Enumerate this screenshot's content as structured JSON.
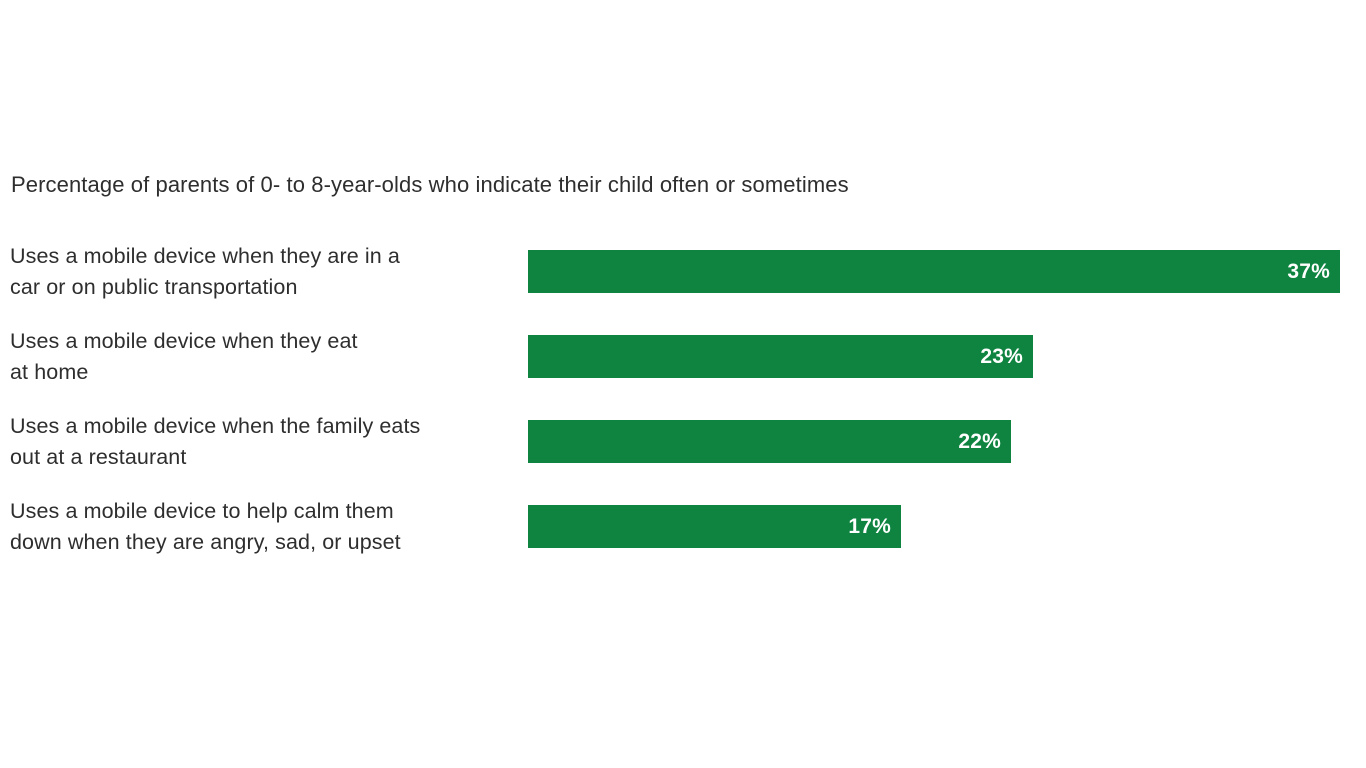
{
  "page": {
    "background_color": "#ffffff"
  },
  "chart": {
    "title": "Percentage of parents of 0- to 8-year-olds who indicate their child often or sometimes",
    "bar_color": "#0e8440",
    "label_text_color": "#2e2e2e",
    "value_text_color": "#ffffff",
    "scale_max": 37,
    "rows": [
      {
        "lines": [
          "Uses a mobile device when they are in a",
          "car or on public transportation"
        ],
        "value": 37,
        "value_label": "37%"
      },
      {
        "lines": [
          "Uses a mobile device when they eat",
          "at home"
        ],
        "value": 23,
        "value_label": "23%"
      },
      {
        "lines": [
          "Uses a mobile device when the family eats",
          "out at a restaurant"
        ],
        "value": 22,
        "value_label": "22%"
      },
      {
        "lines": [
          "Uses a mobile device to help calm them",
          "down when they are angry, sad, or upset"
        ],
        "value": 17,
        "value_label": "17%"
      }
    ]
  },
  "chart_data": {
    "type": "bar",
    "orientation": "horizontal",
    "title": "Percentage of parents of 0- to 8-year-olds who indicate their child often or sometimes",
    "categories": [
      "Uses a mobile device when they are in a car or on public transportation",
      "Uses a mobile device when they eat at home",
      "Uses a mobile device when the family eats out at a restaurant",
      "Uses a mobile device to help calm them down when they are angry, sad, or upset"
    ],
    "values": [
      37,
      23,
      22,
      17
    ],
    "data_labels": [
      "37%",
      "23%",
      "22%",
      "17%"
    ],
    "unit": "%",
    "xlabel": "",
    "ylabel": "",
    "xlim": [
      0,
      37
    ],
    "grid": false,
    "legend": "none",
    "bar_color": "#0e8440",
    "data_label_position": "inside-end"
  }
}
